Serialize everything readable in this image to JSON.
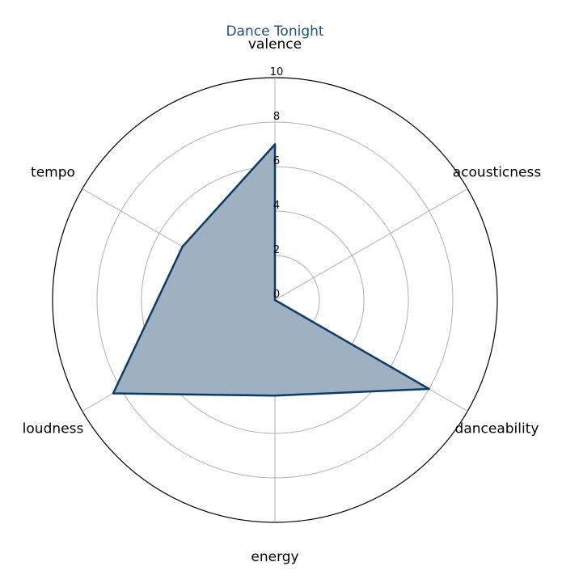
{
  "chart_data": {
    "type": "radar",
    "title": "Dance Tonight",
    "axes": [
      "valence",
      "acousticness",
      "danceability",
      "energy",
      "loudness",
      "tempo"
    ],
    "series": [
      {
        "values": [
          7.0,
          0.0,
          8.0,
          4.3,
          8.4,
          4.8
        ]
      }
    ],
    "rlim": [
      0,
      10
    ],
    "rticks": [
      "0",
      "2",
      "4",
      "6",
      "8",
      "10"
    ],
    "grid": true,
    "colors": {
      "title": "#1f4e79",
      "line": "#0d3b66",
      "fill": "#9fb0c2",
      "grid": "#b0b0b0",
      "outer_ring": "#000000"
    }
  }
}
